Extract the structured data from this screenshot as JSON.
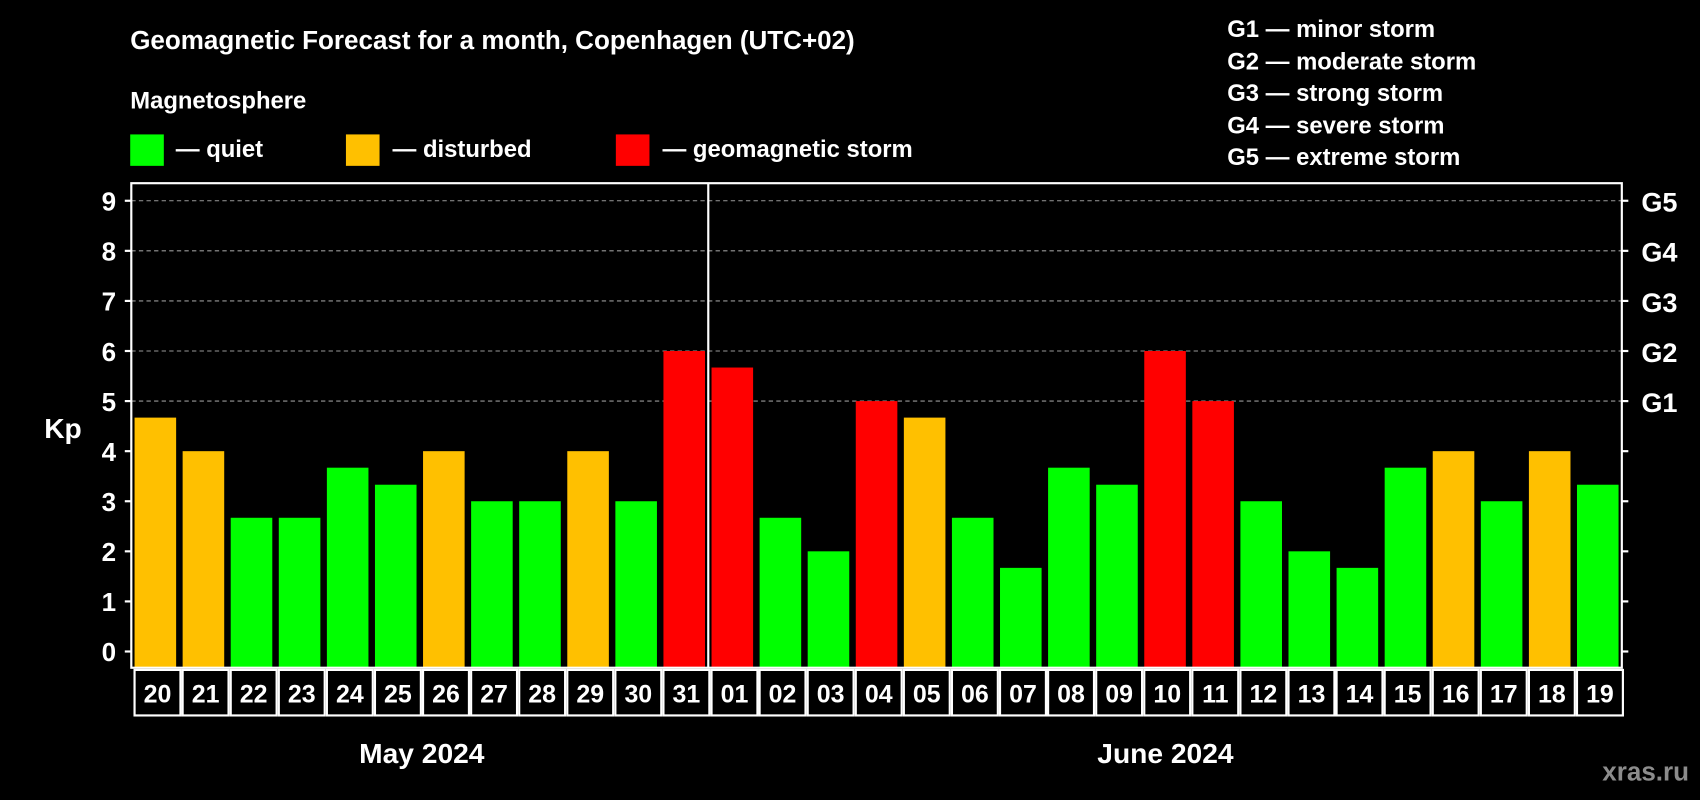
{
  "chart_data": {
    "type": "bar",
    "title": "Geomagnetic Forecast for a month, Copenhagen (UTC+02)",
    "legend_title": "Magnetosphere",
    "legend": [
      {
        "label": "— quiet",
        "color": "#00ff00"
      },
      {
        "label": "— disturbed",
        "color": "#ffc000"
      },
      {
        "label": "— geomagnetic storm",
        "color": "#ff0000"
      }
    ],
    "storm_scale": [
      "G1 — minor storm",
      "G2 — moderate storm",
      "G3 — strong storm",
      "G4 — severe storm",
      "G5 — extreme storm"
    ],
    "ylabel": "Kp",
    "ylim": [
      0,
      9
    ],
    "yticks": [
      "0",
      "1",
      "2",
      "3",
      "4",
      "5",
      "6",
      "7",
      "8",
      "9"
    ],
    "right_ticks": [
      {
        "value": 5,
        "label": "G1"
      },
      {
        "value": 6,
        "label": "G2"
      },
      {
        "value": 7,
        "label": "G3"
      },
      {
        "value": 8,
        "label": "G4"
      },
      {
        "value": 9,
        "label": "G5"
      }
    ],
    "categories": [
      "20",
      "21",
      "22",
      "23",
      "24",
      "25",
      "26",
      "27",
      "28",
      "29",
      "30",
      "31",
      "01",
      "02",
      "03",
      "04",
      "05",
      "06",
      "07",
      "08",
      "09",
      "10",
      "11",
      "12",
      "13",
      "14",
      "15",
      "16",
      "17",
      "18",
      "19"
    ],
    "values": [
      4.67,
      4,
      2.67,
      2.67,
      3.67,
      3.33,
      4,
      3,
      3,
      4,
      3,
      6,
      5.67,
      2.67,
      2,
      5,
      4.67,
      2.67,
      1.67,
      3.67,
      3.33,
      6,
      5,
      3,
      2,
      1.67,
      3.67,
      4,
      3,
      4,
      3.33
    ],
    "status": [
      "disturbed",
      "disturbed",
      "quiet",
      "quiet",
      "quiet",
      "quiet",
      "disturbed",
      "quiet",
      "quiet",
      "disturbed",
      "quiet",
      "storm",
      "storm",
      "quiet",
      "quiet",
      "storm",
      "disturbed",
      "quiet",
      "quiet",
      "quiet",
      "quiet",
      "storm",
      "storm",
      "quiet",
      "quiet",
      "quiet",
      "quiet",
      "disturbed",
      "quiet",
      "disturbed",
      "quiet"
    ],
    "months": [
      "May 2024",
      "June 2024"
    ],
    "month_split_index": 12,
    "grid": true,
    "colors": {
      "quiet": "#00ff00",
      "disturbed": "#ffc000",
      "storm": "#ff0000"
    }
  },
  "watermark": "xras.ru"
}
